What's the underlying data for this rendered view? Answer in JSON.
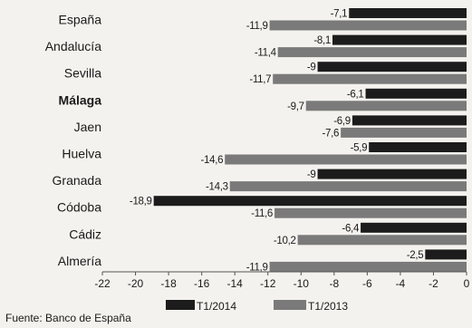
{
  "chart_data": {
    "type": "bar",
    "orientation": "horizontal",
    "categories": [
      "España",
      "Andalucía",
      "Sevilla",
      "Málaga",
      "Jaen",
      "Huelva",
      "Granada",
      "Códoba",
      "Cádiz",
      "Almería"
    ],
    "highlight_category": "Málaga",
    "series": [
      {
        "name": "T1/2014",
        "values": [
          -7.1,
          -8.1,
          -9,
          -6.1,
          -6.9,
          -5.9,
          -9,
          -18.9,
          -6.4,
          -2.5
        ],
        "labels": [
          "-7,1",
          "-8,1",
          "-9",
          "-6,1",
          "-6,9",
          "-5,9",
          "-9",
          "-18,9",
          "-6,4",
          "-2,5"
        ],
        "color": "#1c1c1c"
      },
      {
        "name": "T1/2013",
        "values": [
          -11.9,
          -11.4,
          -11.7,
          -9.7,
          -7.6,
          -14.6,
          -14.3,
          -11.6,
          -10.2,
          -11.9
        ],
        "labels": [
          "-11,9",
          "-11,4",
          "-11,7",
          "-9,7",
          "-7,6",
          "-14,6",
          "-14,3",
          "-11,6",
          "-10,2",
          "-11,9"
        ],
        "color": "#7a7a7a"
      }
    ],
    "xlim": [
      -22,
      0
    ],
    "xticks": [
      "-22",
      "-20",
      "-18",
      "-16",
      "-14",
      "-12",
      "-10",
      "-8",
      "-6",
      "-4",
      "-2",
      "0"
    ],
    "legend_position": "bottom"
  },
  "source": "Fuente: Banco de España"
}
